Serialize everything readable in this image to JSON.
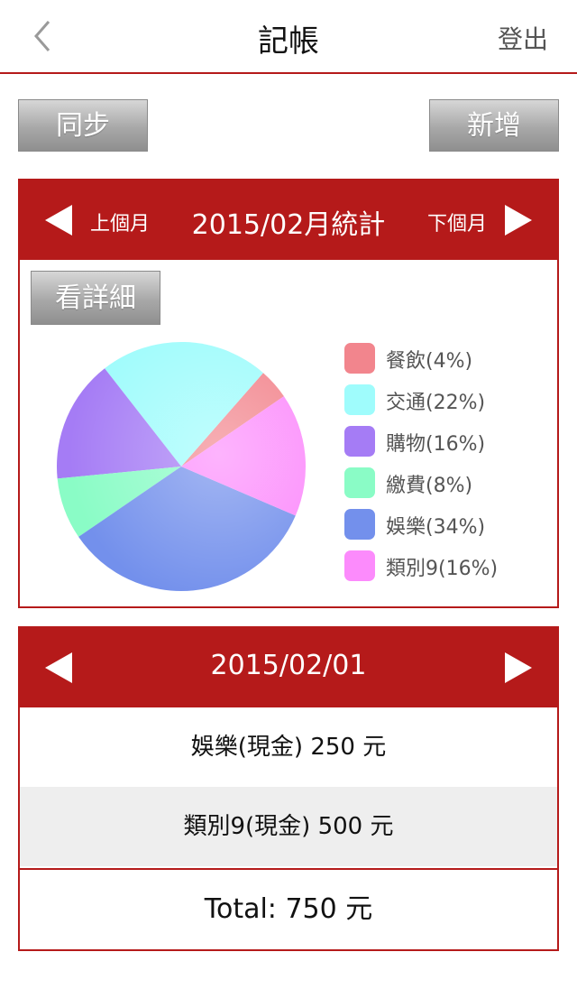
{
  "navbar": {
    "title": "記帳",
    "logout_label": "登出"
  },
  "toolbar": {
    "sync_label": "同步",
    "add_label": "新增"
  },
  "stats": {
    "prev_label": "上個月",
    "next_label": "下個月",
    "title": "2015/02月統計",
    "detail_label": "看詳細"
  },
  "chart_data": {
    "type": "pie",
    "title": "",
    "slices": [
      {
        "label": "餐飲(4%)",
        "name": "餐飲",
        "value": 4,
        "color": "#f2858d"
      },
      {
        "label": "交通(22%)",
        "name": "交通",
        "value": 22,
        "color": "#9ffcfc"
      },
      {
        "label": "購物(16%)",
        "name": "購物",
        "value": 16,
        "color": "#a57cf5"
      },
      {
        "label": "繳費(8%)",
        "name": "繳費",
        "value": 8,
        "color": "#8afcc6"
      },
      {
        "label": "娛樂(34%)",
        "name": "娛樂",
        "value": 34,
        "color": "#7390ec"
      },
      {
        "label": "類別9(16%)",
        "name": "類別9",
        "value": 16,
        "color": "#fc8bfc"
      }
    ],
    "legend": "right"
  },
  "daily": {
    "date": "2015/02/01",
    "records": [
      "娛樂(現金) 250 元",
      "類別9(現金) 500 元"
    ],
    "total": "Total: 750 元"
  },
  "colors": {
    "accent": "#b51a1a",
    "button_gray": "#a8a8a8"
  }
}
